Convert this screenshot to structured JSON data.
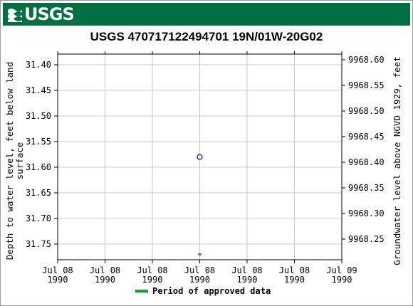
{
  "header": {
    "logo_text": "USGS"
  },
  "chart_data": {
    "type": "scatter",
    "title": "USGS 470717122494701 19N/01W-20G02",
    "ylabel_left": "Depth to water level, feet below land surface",
    "ylabel_left_lines": [
      "Depth to water level, feet below land",
      "surface"
    ],
    "ylabel_right": "Groundwater level above NGVD 1929, feet",
    "x_ticks": [
      {
        "line1": "Jul 08",
        "line2": "1990"
      },
      {
        "line1": "Jul 08",
        "line2": "1990"
      },
      {
        "line1": "Jul 08",
        "line2": "1990"
      },
      {
        "line1": "Jul 08",
        "line2": "1990"
      },
      {
        "line1": "Jul 08",
        "line2": "1990"
      },
      {
        "line1": "Jul 08",
        "line2": "1990"
      },
      {
        "line1": "Jul 09",
        "line2": "1990"
      }
    ],
    "x_range": [
      "1990-07-08T00:00",
      "1990-07-09T00:00"
    ],
    "y_left_ticks": [
      "31.40",
      "31.45",
      "31.50",
      "31.55",
      "31.60",
      "31.65",
      "31.70",
      "31.75"
    ],
    "y_left_range": [
      31.38,
      31.78
    ],
    "y_left_inverted": true,
    "y_right_ticks": [
      "9968.60",
      "9968.55",
      "9968.50",
      "9968.45",
      "9968.40",
      "9968.35",
      "9968.30",
      "9968.25"
    ],
    "grid": true,
    "points": [
      {
        "x": "1990-07-08T12:00",
        "y": 31.58,
        "marker": "open-circle",
        "color": "#0000cc"
      }
    ],
    "approved_period": {
      "x": "1990-07-08T12:00",
      "color": "#1a9e2a"
    },
    "legend": {
      "label": "Period of approved data",
      "placement": "bottom-center"
    }
  }
}
